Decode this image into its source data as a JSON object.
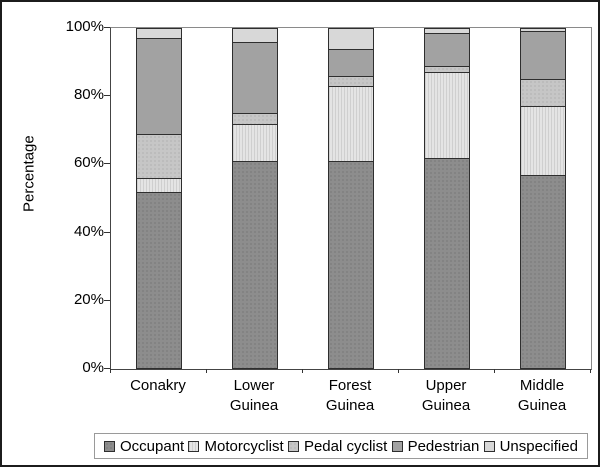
{
  "chart_data": {
    "type": "bar",
    "stacked": true,
    "title": "",
    "xlabel": "",
    "ylabel": "Percentage",
    "ylim": [
      0,
      100
    ],
    "yticks": [
      0,
      20,
      40,
      60,
      80,
      100
    ],
    "ytick_suffix": "%",
    "grid": false,
    "legend_position": "bottom",
    "categories": [
      "Conakry",
      "Lower Guinea",
      "Forest Guinea",
      "Upper Guinea",
      "Middle Guinea"
    ],
    "series": [
      {
        "name": "Occupant",
        "color": "#8d8d8d",
        "pattern": "dots-dark",
        "values": [
          52,
          61,
          61,
          62,
          57
        ]
      },
      {
        "name": "Motorcyclist",
        "color": "#e4e4e4",
        "pattern": "stripes-vertical",
        "values": [
          4,
          11,
          22,
          25,
          20
        ]
      },
      {
        "name": "Pedal cyclist",
        "color": "#c6c6c6",
        "pattern": "dots",
        "values": [
          13,
          3,
          3,
          2,
          8
        ]
      },
      {
        "name": "Pedestrian",
        "color": "#a2a2a2",
        "pattern": "solid",
        "values": [
          28,
          21,
          8,
          9.5,
          14
        ]
      },
      {
        "name": "Unspecified",
        "color": "#d8d8d8",
        "pattern": "solid",
        "values": [
          3,
          4,
          6,
          1.5,
          1
        ]
      }
    ]
  }
}
